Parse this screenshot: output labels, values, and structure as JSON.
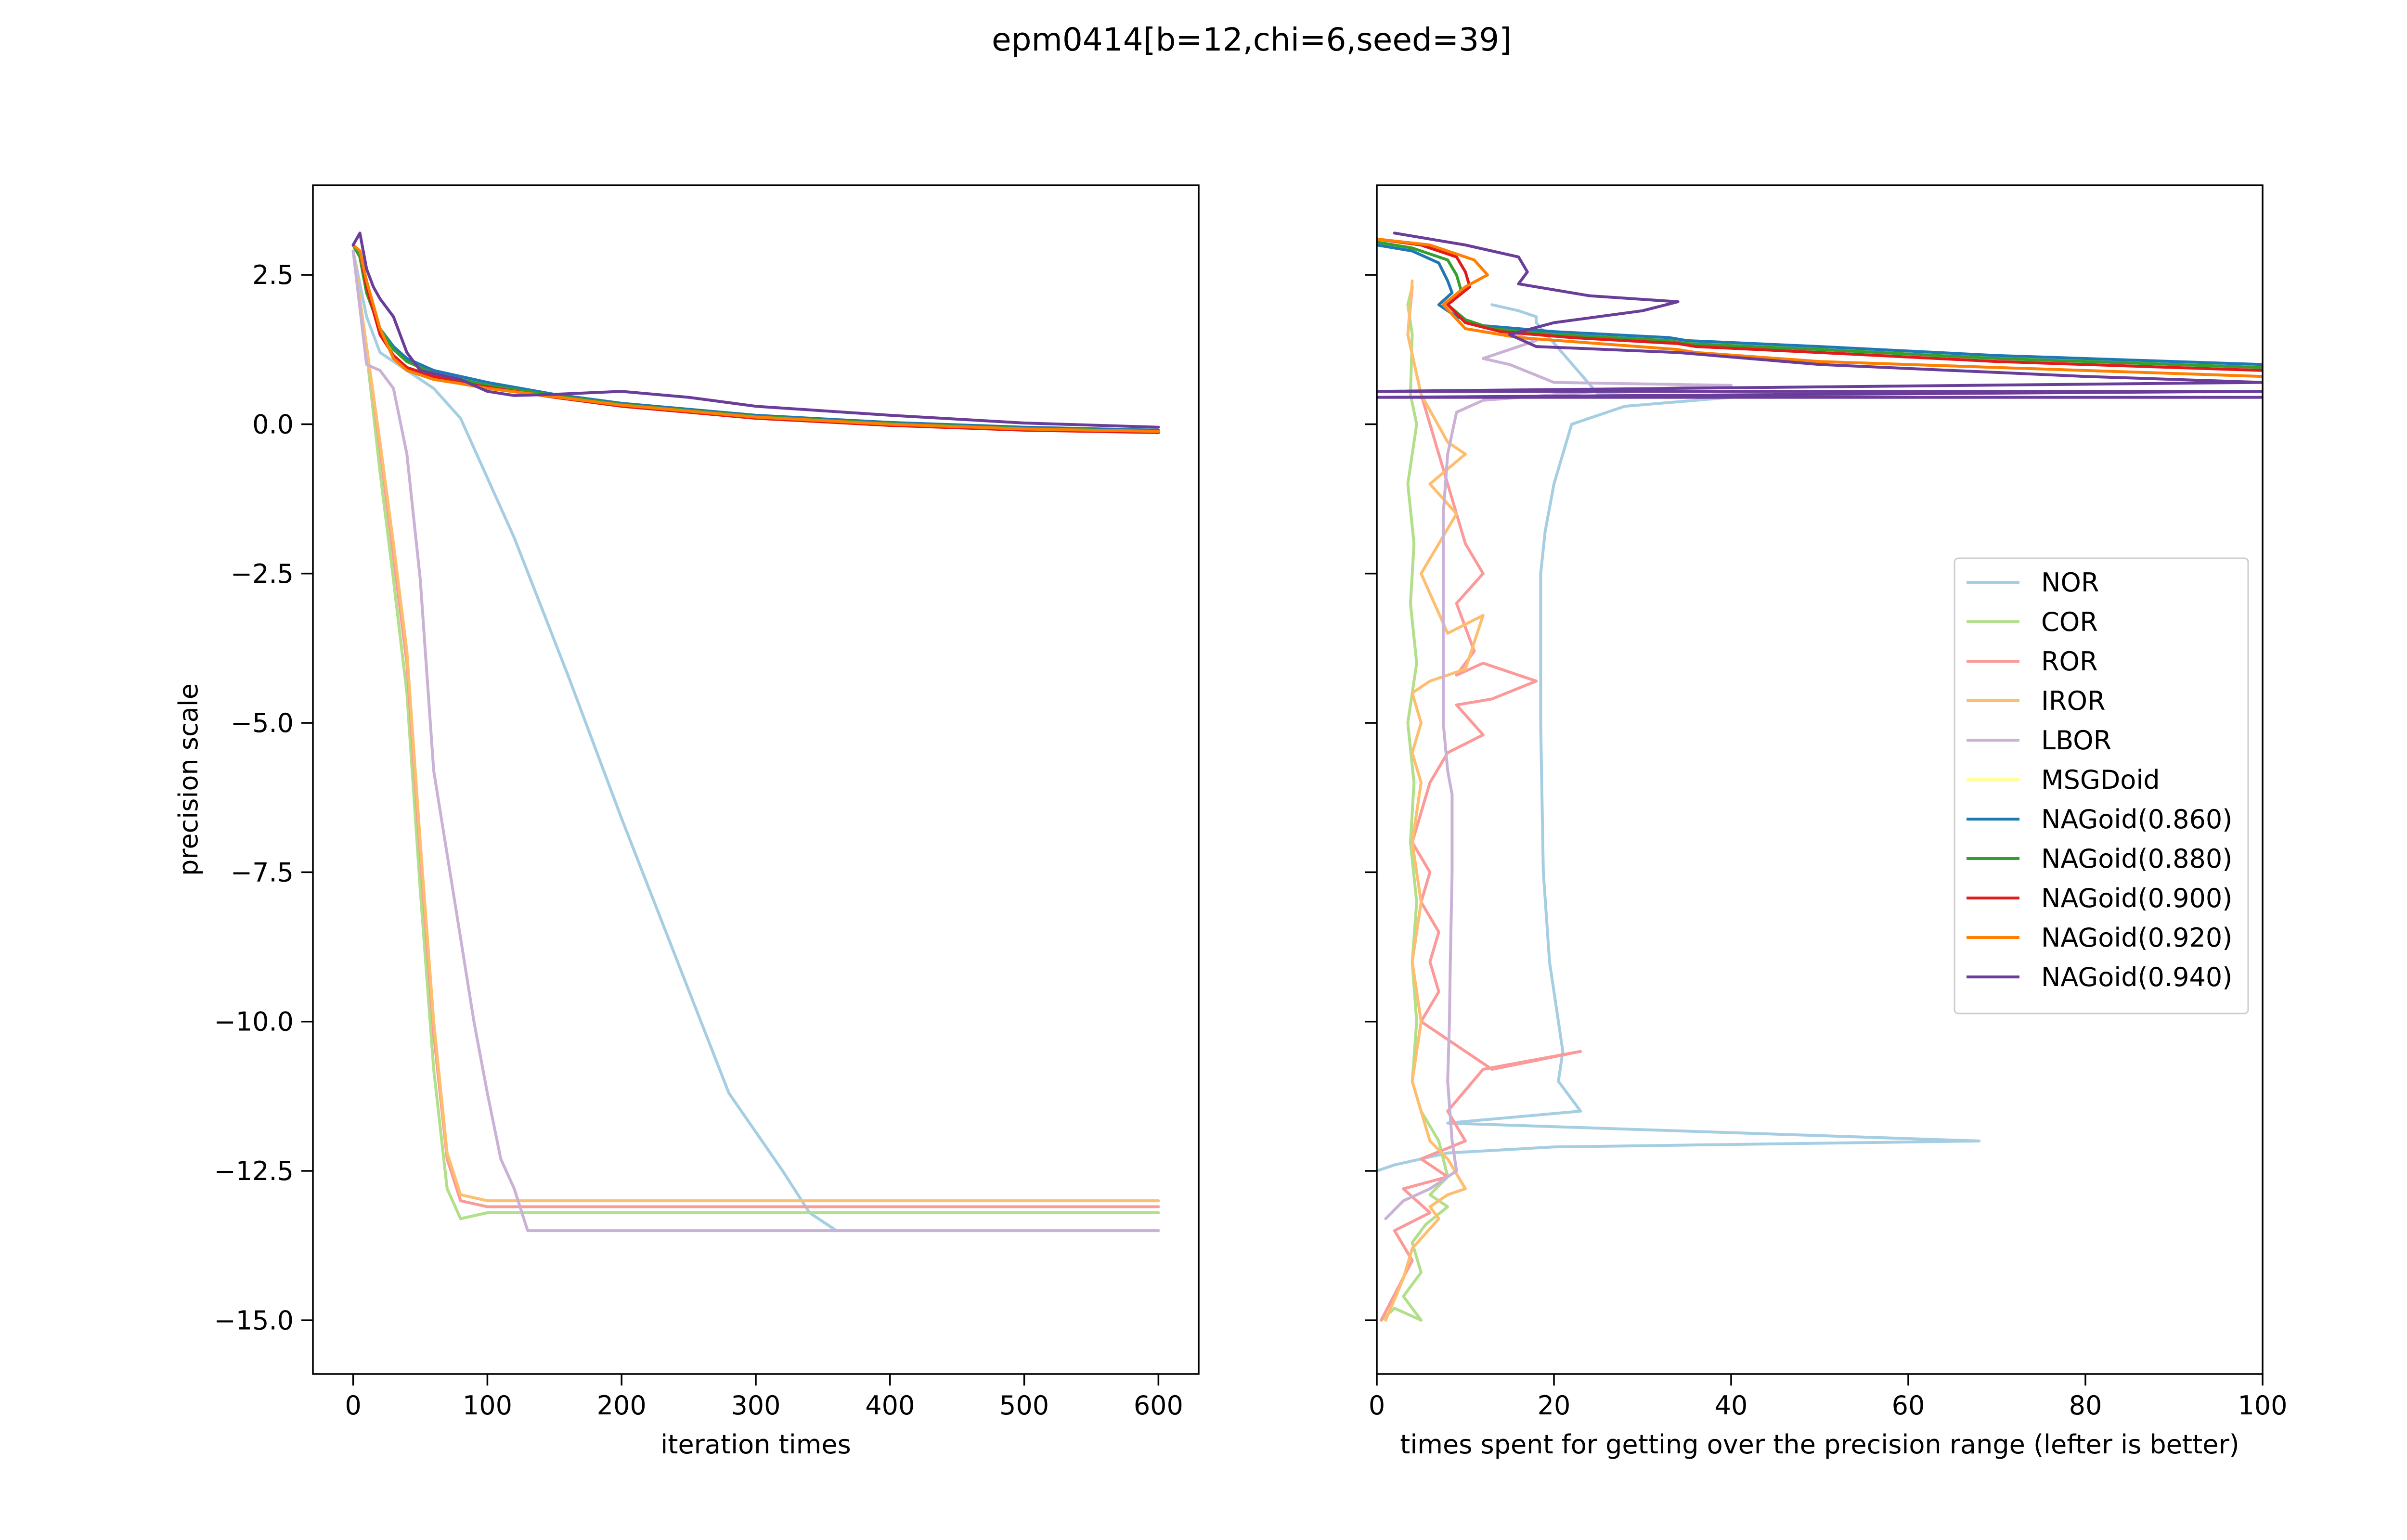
{
  "figure": {
    "title": "epm0414[b=12,chi=6,seed=39]"
  },
  "colors": {
    "NOR": "#a6cee3",
    "COR": "#b2df8a",
    "ROR": "#fb9a99",
    "IROR": "#fdbf6f",
    "LBOR": "#cab2d6",
    "MSGDoid": "#ffff99",
    "NAGoid(0.860)": "#1f78b4",
    "NAGoid(0.880)": "#33a02c",
    "NAGoid(0.900)": "#e31a1c",
    "NAGoid(0.920)": "#ff7f00",
    "NAGoid(0.940)": "#6a3d9a"
  },
  "chart_data": [
    {
      "type": "line",
      "title": "",
      "xlabel": "iteration times",
      "ylabel": "precision scale",
      "xlim": [
        -30,
        630
      ],
      "ylim": [
        -15.9,
        4.0
      ],
      "xticks": [
        0,
        100,
        200,
        300,
        400,
        500,
        600
      ],
      "yticks": [
        2.5,
        0.0,
        -2.5,
        -5.0,
        -7.5,
        -10.0,
        -12.5,
        -15.0
      ],
      "xtick_labels": [
        "0",
        "100",
        "200",
        "300",
        "400",
        "500",
        "600"
      ],
      "ytick_labels": [
        "2.5",
        "0.0",
        "−2.5",
        "−5.0",
        "−7.5",
        "−10.0",
        "−12.5",
        "−15.0"
      ],
      "grid": false,
      "series": [
        {
          "name": "NOR",
          "x": [
            0,
            10,
            20,
            40,
            60,
            80,
            120,
            160,
            200,
            240,
            280,
            320,
            340,
            360,
            400,
            450,
            500,
            550,
            600
          ],
          "y": [
            2.9,
            1.8,
            1.2,
            0.9,
            0.6,
            0.1,
            -1.9,
            -4.2,
            -6.6,
            -8.9,
            -11.2,
            -12.5,
            -13.2,
            -13.5,
            -13.5,
            -13.5,
            -13.5,
            -13.5,
            -13.5
          ]
        },
        {
          "name": "COR",
          "x": [
            0,
            10,
            20,
            30,
            40,
            50,
            60,
            70,
            80,
            100,
            200,
            300,
            400,
            500,
            600
          ],
          "y": [
            2.9,
            1.2,
            -0.8,
            -2.6,
            -4.5,
            -7.8,
            -10.8,
            -12.8,
            -13.3,
            -13.2,
            -13.2,
            -13.2,
            -13.2,
            -13.2,
            -13.2
          ]
        },
        {
          "name": "ROR",
          "x": [
            0,
            10,
            20,
            30,
            40,
            50,
            60,
            70,
            80,
            100,
            200,
            300,
            400,
            500,
            600
          ],
          "y": [
            2.9,
            1.3,
            -0.4,
            -2.2,
            -4.0,
            -7.2,
            -10.2,
            -12.3,
            -13.0,
            -13.1,
            -13.1,
            -13.1,
            -13.1,
            -13.1,
            -13.1
          ]
        },
        {
          "name": "IROR",
          "x": [
            0,
            10,
            20,
            30,
            40,
            50,
            60,
            70,
            80,
            100,
            200,
            300,
            400,
            500,
            600
          ],
          "y": [
            2.9,
            1.3,
            -0.3,
            -2.0,
            -3.8,
            -7.0,
            -10.0,
            -12.2,
            -12.9,
            -13.0,
            -13.0,
            -13.0,
            -13.0,
            -13.0,
            -13.0
          ]
        },
        {
          "name": "LBOR",
          "x": [
            0,
            10,
            20,
            30,
            40,
            50,
            60,
            70,
            80,
            90,
            100,
            110,
            120,
            130,
            200,
            300,
            400,
            500,
            600
          ],
          "y": [
            2.9,
            1.0,
            0.9,
            0.6,
            -0.5,
            -2.6,
            -5.8,
            -7.2,
            -8.6,
            -10.0,
            -11.2,
            -12.3,
            -12.8,
            -13.5,
            -13.5,
            -13.5,
            -13.5,
            -13.5,
            -13.5
          ]
        },
        {
          "name": "MSGDoid",
          "x": [],
          "y": []
        },
        {
          "name": "NAGoid(0.860)",
          "x": [
            0,
            5,
            10,
            20,
            30,
            40,
            60,
            80,
            100,
            150,
            200,
            300,
            400,
            500,
            600
          ],
          "y": [
            3.0,
            2.8,
            2.2,
            1.6,
            1.3,
            1.1,
            0.9,
            0.8,
            0.7,
            0.5,
            0.35,
            0.15,
            0.03,
            -0.05,
            -0.1
          ]
        },
        {
          "name": "NAGoid(0.880)",
          "x": [
            0,
            5,
            10,
            20,
            30,
            40,
            60,
            80,
            100,
            150,
            200,
            300,
            400,
            500,
            600
          ],
          "y": [
            3.0,
            2.8,
            2.2,
            1.6,
            1.25,
            1.05,
            0.85,
            0.75,
            0.65,
            0.48,
            0.33,
            0.13,
            0.01,
            -0.07,
            -0.12
          ]
        },
        {
          "name": "NAGoid(0.900)",
          "x": [
            0,
            5,
            10,
            20,
            30,
            40,
            60,
            80,
            100,
            150,
            200,
            300,
            400,
            500,
            600
          ],
          "y": [
            3.0,
            2.9,
            2.3,
            1.5,
            1.15,
            0.95,
            0.8,
            0.7,
            0.62,
            0.45,
            0.3,
            0.1,
            -0.02,
            -0.1,
            -0.14
          ]
        },
        {
          "name": "NAGoid(0.920)",
          "x": [
            0,
            5,
            10,
            20,
            30,
            40,
            60,
            80,
            100,
            150,
            200,
            300,
            400,
            500,
            600
          ],
          "y": [
            3.0,
            2.9,
            2.4,
            1.6,
            1.1,
            0.9,
            0.75,
            0.68,
            0.6,
            0.46,
            0.32,
            0.12,
            0.0,
            -0.08,
            -0.12
          ]
        },
        {
          "name": "NAGoid(0.940)",
          "x": [
            0,
            5,
            10,
            15,
            20,
            30,
            40,
            50,
            60,
            80,
            100,
            120,
            150,
            200,
            250,
            300,
            400,
            500,
            600
          ],
          "y": [
            3.0,
            3.2,
            2.6,
            2.3,
            2.1,
            1.8,
            1.2,
            0.9,
            0.85,
            0.75,
            0.55,
            0.48,
            0.5,
            0.55,
            0.45,
            0.3,
            0.15,
            0.02,
            -0.05
          ]
        }
      ]
    },
    {
      "type": "line",
      "title": "",
      "xlabel": "times spent for getting over the precision range (lefter is better)",
      "ylabel": "",
      "xlim": [
        0,
        100
      ],
      "ylim": [
        -15.9,
        4.0
      ],
      "xticks": [
        0,
        20,
        40,
        60,
        80,
        100
      ],
      "yticks": [
        2.5,
        0.0,
        -2.5,
        -5.0,
        -7.5,
        -10.0,
        -12.5,
        -15.0
      ],
      "xtick_labels": [
        "0",
        "20",
        "40",
        "60",
        "80",
        "100"
      ],
      "grid": false,
      "legend": "center-right",
      "series": [
        {
          "name": "NOR",
          "x": [
            13,
            16,
            18,
            18,
            25,
            40,
            28,
            22,
            20,
            19,
            18.5,
            18.5,
            18.8,
            19.5,
            20.5,
            21,
            20.5,
            22,
            23,
            8,
            28,
            68,
            20,
            8,
            2,
            0
          ],
          "y": [
            2.0,
            1.9,
            1.8,
            1.7,
            0.5,
            0.45,
            0.3,
            0.0,
            -1.0,
            -1.8,
            -2.5,
            -5.0,
            -7.5,
            -9.0,
            -10.0,
            -10.5,
            -11.0,
            -11.3,
            -11.5,
            -11.7,
            -11.8,
            -12.0,
            -12.1,
            -12.2,
            -12.4,
            -12.5
          ]
        },
        {
          "name": "COR",
          "x": [
            4,
            3.5,
            4,
            3.8,
            4.5,
            3.5,
            4.2,
            3.8,
            4.5,
            3.5,
            4.2,
            3.8,
            4.5,
            4.0,
            4.5,
            4.0,
            5.0,
            7.0,
            8.0,
            6.0,
            8.0,
            5.5,
            4.0,
            5.0,
            3.0,
            5.0,
            2.0,
            0.5
          ],
          "y": [
            2.3,
            2.0,
            1.5,
            0.5,
            0.0,
            -1.0,
            -2.0,
            -3.0,
            -4.0,
            -5.0,
            -6.0,
            -7.0,
            -8.0,
            -9.0,
            -10.0,
            -11.0,
            -11.5,
            -12.0,
            -12.6,
            -12.9,
            -13.1,
            -13.4,
            -13.7,
            -14.2,
            -14.6,
            -15.0,
            -14.8,
            -15.0
          ]
        },
        {
          "name": "ROR",
          "x": [
            4,
            3.5,
            5,
            7,
            10,
            12,
            9,
            11,
            9,
            12,
            18,
            13,
            9,
            12,
            8,
            6,
            5,
            4,
            6,
            5,
            7,
            6,
            7,
            5,
            10,
            13,
            23,
            12,
            8,
            10,
            5,
            8,
            3,
            6,
            2,
            4,
            0.5
          ],
          "y": [
            2.3,
            1.5,
            0.5,
            -0.5,
            -2.0,
            -2.5,
            -3.0,
            -3.8,
            -4.2,
            -4.0,
            -4.3,
            -4.6,
            -4.7,
            -5.2,
            -5.5,
            -6.0,
            -6.5,
            -7.0,
            -7.5,
            -8.0,
            -8.5,
            -9.0,
            -9.5,
            -10.0,
            -10.5,
            -10.8,
            -10.5,
            -10.8,
            -11.5,
            -12.0,
            -12.3,
            -12.6,
            -12.8,
            -13.2,
            -13.5,
            -14.0,
            -15.0
          ]
        },
        {
          "name": "IROR",
          "x": [
            4,
            3.5,
            5,
            8,
            10,
            6,
            9,
            5,
            8,
            12,
            10,
            6,
            4,
            5,
            4,
            5,
            4,
            5,
            4,
            5,
            4,
            5,
            6,
            8,
            10,
            8,
            6,
            7,
            4,
            3,
            1
          ],
          "y": [
            2.4,
            1.5,
            0.5,
            -0.3,
            -0.5,
            -1.0,
            -1.5,
            -2.5,
            -3.5,
            -3.2,
            -4.1,
            -4.3,
            -4.5,
            -5.0,
            -5.5,
            -6.0,
            -7.0,
            -8.0,
            -9.0,
            -10.0,
            -11.0,
            -11.5,
            -12.0,
            -12.3,
            -12.8,
            -12.9,
            -13.1,
            -13.3,
            -13.8,
            -14.3,
            -15.0
          ]
        },
        {
          "name": "LBOR",
          "x": [
            13,
            18,
            12,
            15,
            20,
            40,
            25,
            12,
            9,
            8,
            7.5,
            7.5,
            8,
            8.5,
            8.5,
            8.3,
            8.2,
            8.0,
            8.5,
            9,
            6,
            3,
            1
          ],
          "y": [
            1.6,
            1.4,
            1.1,
            1.0,
            0.7,
            0.65,
            0.55,
            0.4,
            0.2,
            -0.5,
            -1.5,
            -5.0,
            -5.8,
            -6.2,
            -7.5,
            -9.0,
            -10.0,
            -11.0,
            -12.0,
            -12.5,
            -12.8,
            -13.0,
            -13.3
          ]
        },
        {
          "name": "MSGDoid",
          "x": [],
          "y": []
        },
        {
          "name": "NAGoid(0.860)",
          "x": [
            0,
            4,
            7,
            8,
            8.5,
            7,
            9,
            12,
            20,
            33,
            35,
            50,
            70,
            90,
            100
          ],
          "y": [
            3.0,
            2.9,
            2.7,
            2.4,
            2.2,
            2.0,
            1.8,
            1.65,
            1.55,
            1.45,
            1.4,
            1.3,
            1.15,
            1.05,
            1.0
          ]
        },
        {
          "name": "NAGoid(0.880)",
          "x": [
            0,
            4,
            8,
            9,
            9.5,
            8,
            10,
            13,
            20,
            33,
            35,
            50,
            70,
            90,
            100
          ],
          "y": [
            3.05,
            2.95,
            2.75,
            2.5,
            2.25,
            2.0,
            1.75,
            1.6,
            1.5,
            1.4,
            1.35,
            1.25,
            1.1,
            1.0,
            0.95
          ]
        },
        {
          "name": "NAGoid(0.900)",
          "x": [
            0,
            5,
            9,
            10,
            10.5,
            8,
            10,
            14,
            22,
            34,
            36,
            50,
            70,
            90,
            100
          ],
          "y": [
            3.1,
            3.0,
            2.8,
            2.55,
            2.3,
            2.0,
            1.7,
            1.55,
            1.45,
            1.35,
            1.3,
            1.2,
            1.05,
            0.95,
            0.9
          ]
        },
        {
          "name": "NAGoid(0.920)",
          "x": [
            0,
            6,
            11,
            12.5,
            10,
            7.5,
            10,
            16,
            25,
            34,
            36,
            50,
            70,
            90,
            100
          ],
          "y": [
            3.1,
            3.0,
            2.75,
            2.5,
            2.3,
            2.0,
            1.6,
            1.45,
            1.35,
            1.25,
            1.2,
            1.05,
            0.95,
            0.85,
            0.8
          ]
        },
        {
          "name": "NAGoid(0.940)",
          "x": [
            2,
            10,
            16,
            17,
            16,
            24,
            34,
            30,
            20,
            15,
            18,
            34,
            50,
            80,
            100,
            0,
            100,
            0,
            100
          ],
          "y": [
            3.2,
            3.0,
            2.8,
            2.55,
            2.35,
            2.15,
            2.05,
            1.9,
            1.7,
            1.5,
            1.3,
            1.2,
            1.0,
            0.8,
            0.7,
            0.55,
            0.55,
            0.45,
            0.45
          ]
        }
      ]
    }
  ]
}
